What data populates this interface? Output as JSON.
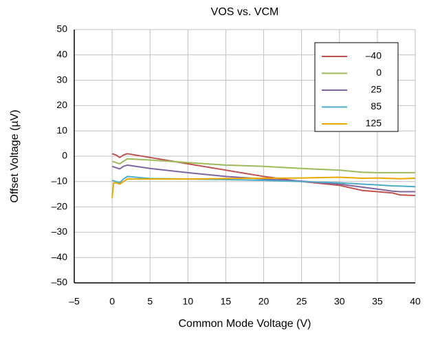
{
  "chart_data": {
    "type": "line",
    "title": "VOS vs. VCM",
    "x_label": "Common Mode Voltage (V)",
    "y_label": "Offset Voltage (µV)",
    "x": [
      0,
      0.2,
      0.5,
      1,
      1.5,
      2,
      5,
      10,
      15,
      20,
      25,
      30,
      33,
      35,
      37,
      38,
      40
    ],
    "series": [
      {
        "name": "–40",
        "color": "#c0504d",
        "values": [
          1,
          0.8,
          0.5,
          -0.5,
          0.5,
          1,
          -0.5,
          -3,
          -5.5,
          -8,
          -10,
          -11.5,
          -13.5,
          -14,
          -14.5,
          -15.3,
          -15.5
        ]
      },
      {
        "name": "0",
        "color": "#9bbb59",
        "values": [
          -2,
          -2.2,
          -2.5,
          -3,
          -2,
          -1,
          -1.5,
          -2.5,
          -3.5,
          -4,
          -4.8,
          -5.5,
          -6.3,
          -6.5,
          -6.5,
          -6.5,
          -6.5
        ]
      },
      {
        "name": "25",
        "color": "#8064a2",
        "values": [
          -4,
          -4.2,
          -4.5,
          -5,
          -4,
          -3.5,
          -4.8,
          -6.5,
          -8,
          -9,
          -9.8,
          -11,
          -12.2,
          -13,
          -13.8,
          -14,
          -14
        ]
      },
      {
        "name": "85",
        "color": "#4bacc6",
        "values": [
          -9.5,
          -9.7,
          -10,
          -10.5,
          -9,
          -8,
          -8.8,
          -9,
          -9.2,
          -9.5,
          -10,
          -10.5,
          -11,
          -11.3,
          -11.7,
          -11.8,
          -12
        ]
      },
      {
        "name": "125",
        "color": "#e8a800",
        "values": [
          -16.5,
          -10.5,
          -10.5,
          -11,
          -10,
          -9,
          -9,
          -9,
          -8.8,
          -8.7,
          -8.6,
          -8.3,
          -8.7,
          -8.6,
          -8.8,
          -8.9,
          -8.7
        ]
      }
    ],
    "xlim": [
      -5,
      40
    ],
    "xticks": [
      {
        "value": -5,
        "label": "–5"
      },
      0,
      5,
      10,
      15,
      20,
      25,
      30,
      35,
      40
    ],
    "ylim": [
      -50,
      50
    ],
    "yticks": [
      {
        "value": -50,
        "label": "–50"
      },
      {
        "value": -40,
        "label": "–40"
      },
      {
        "value": -30,
        "label": "–30"
      },
      {
        "value": -20,
        "label": "–20"
      },
      {
        "value": -10,
        "label": "–10"
      },
      0,
      10,
      20,
      30,
      40,
      50
    ],
    "grid": true,
    "legend": "upper right"
  }
}
